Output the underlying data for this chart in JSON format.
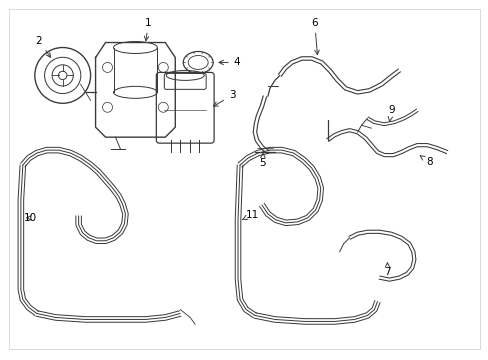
{
  "background_color": "#ffffff",
  "line_color": "#3a3a3a",
  "line_width": 0.9,
  "label_color": "#000000",
  "label_fontsize": 7.5,
  "figsize": [
    4.89,
    3.6
  ],
  "dpi": 100,
  "border_color": "#cccccc"
}
